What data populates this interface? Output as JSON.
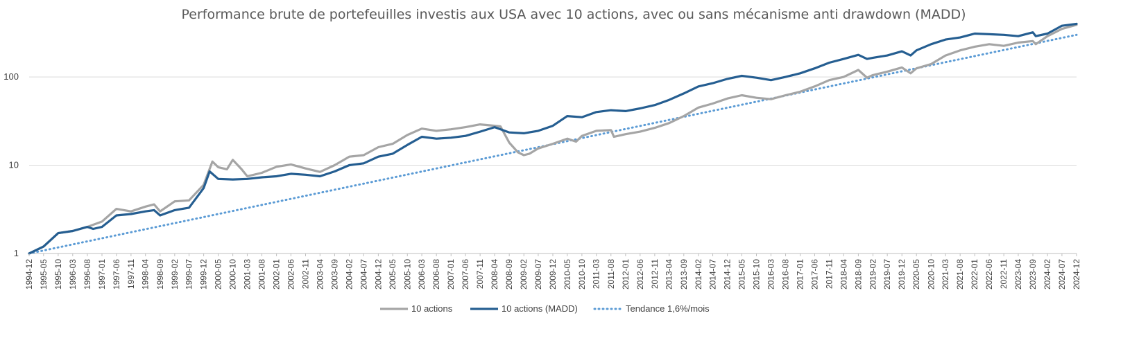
{
  "chart_data": {
    "type": "line",
    "title": "Performance brute de portefeuilles investis aux USA avec 10 actions, avec ou sans mécanisme anti drawdown (MADD)",
    "xlabel": "",
    "ylabel": "",
    "y_scale": "log",
    "ylim": [
      1,
      500
    ],
    "y_ticks": [
      "1",
      "10",
      "100"
    ],
    "y_tick_values": [
      1,
      10,
      100
    ],
    "grid": true,
    "legend_position": "bottom",
    "x_ticks": [
      "1994-12",
      "1995-05",
      "1995-10",
      "1996-03",
      "1996-08",
      "1997-01",
      "1997-06",
      "1997-11",
      "1998-04",
      "1998-09",
      "1999-02",
      "1999-07",
      "1999-12",
      "2000-05",
      "2000-10",
      "2001-03",
      "2001-08",
      "2002-01",
      "2002-06",
      "2002-11",
      "2003-04",
      "2003-09",
      "2004-02",
      "2004-07",
      "2004-12",
      "2005-05",
      "2005-10",
      "2006-03",
      "2006-08",
      "2007-01",
      "2007-06",
      "2007-11",
      "2008-04",
      "2008-09",
      "2009-02",
      "2009-07",
      "2009-12",
      "2010-05",
      "2010-10",
      "2011-03",
      "2011-08",
      "2012-01",
      "2012-06",
      "2012-11",
      "2013-04",
      "2013-09",
      "2014-02",
      "2014-07",
      "2014-12",
      "2015-05",
      "2015-10",
      "2016-03",
      "2016-08",
      "2017-01",
      "2017-06",
      "2017-11",
      "2018-04",
      "2018-09",
      "2019-02",
      "2019-07",
      "2019-12",
      "2020-05",
      "2020-10",
      "2021-03",
      "2021-08",
      "2022-01",
      "2022-06",
      "2022-11",
      "2023-04",
      "2023-09",
      "2024-02",
      "2024-07",
      "2024-12"
    ],
    "series": [
      {
        "name": "10 actions",
        "color": "#a5a5a5",
        "style": "solid",
        "points": [
          [
            "1994-12",
            1
          ],
          [
            "1995-05",
            1.2
          ],
          [
            "1995-10",
            1.7
          ],
          [
            "1996-03",
            1.8
          ],
          [
            "1996-08",
            2.0
          ],
          [
            "1997-01",
            2.3
          ],
          [
            "1997-06",
            3.2
          ],
          [
            "1997-11",
            3.0
          ],
          [
            "1998-04",
            3.4
          ],
          [
            "1998-07",
            3.6
          ],
          [
            "1998-09",
            3.0
          ],
          [
            "1999-02",
            3.9
          ],
          [
            "1999-07",
            4.0
          ],
          [
            "1999-12",
            6.0
          ],
          [
            "2000-03",
            11.0
          ],
          [
            "2000-05",
            9.5
          ],
          [
            "2000-08",
            9.0
          ],
          [
            "2000-10",
            11.5
          ],
          [
            "2001-01",
            9.0
          ],
          [
            "2001-03",
            7.5
          ],
          [
            "2001-08",
            8.2
          ],
          [
            "2002-01",
            9.6
          ],
          [
            "2002-06",
            10.2
          ],
          [
            "2002-11",
            9.2
          ],
          [
            "2003-04",
            8.4
          ],
          [
            "2003-09",
            10.0
          ],
          [
            "2004-02",
            12.5
          ],
          [
            "2004-07",
            13.0
          ],
          [
            "2004-12",
            16.0
          ],
          [
            "2005-05",
            17.5
          ],
          [
            "2005-10",
            22.0
          ],
          [
            "2006-03",
            26.0
          ],
          [
            "2006-08",
            24.5
          ],
          [
            "2007-01",
            25.5
          ],
          [
            "2007-06",
            27.0
          ],
          [
            "2007-11",
            29.0
          ],
          [
            "2008-04",
            28.0
          ],
          [
            "2008-06",
            27.5
          ],
          [
            "2008-09",
            18.0
          ],
          [
            "2008-12",
            14.0
          ],
          [
            "2009-02",
            13.0
          ],
          [
            "2009-04",
            13.5
          ],
          [
            "2009-07",
            15.5
          ],
          [
            "2009-12",
            17.5
          ],
          [
            "2010-05",
            20.0
          ],
          [
            "2010-08",
            18.5
          ],
          [
            "2010-10",
            21.5
          ],
          [
            "2011-03",
            24.5
          ],
          [
            "2011-08",
            25.0
          ],
          [
            "2011-09",
            21.0
          ],
          [
            "2012-01",
            22.5
          ],
          [
            "2012-06",
            24.0
          ],
          [
            "2012-11",
            26.5
          ],
          [
            "2013-04",
            30.0
          ],
          [
            "2013-09",
            36.0
          ],
          [
            "2014-02",
            45.0
          ],
          [
            "2014-07",
            50.0
          ],
          [
            "2014-12",
            57.0
          ],
          [
            "2015-05",
            62.0
          ],
          [
            "2015-10",
            58.0
          ],
          [
            "2016-03",
            56.0
          ],
          [
            "2016-08",
            62.0
          ],
          [
            "2017-01",
            68.0
          ],
          [
            "2017-06",
            78.0
          ],
          [
            "2017-11",
            92.0
          ],
          [
            "2018-04",
            100.0
          ],
          [
            "2018-09",
            120.0
          ],
          [
            "2018-12",
            98.0
          ],
          [
            "2019-02",
            105.0
          ],
          [
            "2019-07",
            115.0
          ],
          [
            "2019-12",
            128.0
          ],
          [
            "2020-03",
            110.0
          ],
          [
            "2020-05",
            125.0
          ],
          [
            "2020-10",
            140.0
          ],
          [
            "2021-03",
            175.0
          ],
          [
            "2021-08",
            200.0
          ],
          [
            "2022-01",
            220.0
          ],
          [
            "2022-06",
            235.0
          ],
          [
            "2022-11",
            225.0
          ],
          [
            "2023-04",
            245.0
          ],
          [
            "2023-09",
            255.0
          ],
          [
            "2023-10",
            235.0
          ],
          [
            "2024-02",
            290.0
          ],
          [
            "2024-07",
            350.0
          ],
          [
            "2024-12",
            390.0
          ]
        ]
      },
      {
        "name": "10 actions (MADD)",
        "color": "#255e91",
        "style": "solid",
        "points": [
          [
            "1994-12",
            1
          ],
          [
            "1995-05",
            1.2
          ],
          [
            "1995-10",
            1.7
          ],
          [
            "1996-03",
            1.8
          ],
          [
            "1996-08",
            2.0
          ],
          [
            "1996-10",
            1.9
          ],
          [
            "1997-01",
            2.0
          ],
          [
            "1997-06",
            2.7
          ],
          [
            "1997-11",
            2.8
          ],
          [
            "1998-04",
            3.0
          ],
          [
            "1998-07",
            3.1
          ],
          [
            "1998-09",
            2.7
          ],
          [
            "1999-02",
            3.1
          ],
          [
            "1999-07",
            3.3
          ],
          [
            "1999-12",
            5.5
          ],
          [
            "2000-02",
            8.5
          ],
          [
            "2000-05",
            7.0
          ],
          [
            "2000-10",
            6.9
          ],
          [
            "2001-03",
            7.0
          ],
          [
            "2001-08",
            7.3
          ],
          [
            "2002-01",
            7.5
          ],
          [
            "2002-06",
            8.0
          ],
          [
            "2002-11",
            7.8
          ],
          [
            "2003-04",
            7.5
          ],
          [
            "2003-09",
            8.5
          ],
          [
            "2004-02",
            10.0
          ],
          [
            "2004-07",
            10.5
          ],
          [
            "2004-12",
            12.5
          ],
          [
            "2005-05",
            13.5
          ],
          [
            "2005-10",
            17.0
          ],
          [
            "2006-03",
            21.0
          ],
          [
            "2006-08",
            20.0
          ],
          [
            "2007-01",
            20.5
          ],
          [
            "2007-06",
            21.5
          ],
          [
            "2007-11",
            24.0
          ],
          [
            "2008-04",
            27.0
          ],
          [
            "2008-09",
            23.5
          ],
          [
            "2009-02",
            23.0
          ],
          [
            "2009-07",
            24.5
          ],
          [
            "2009-12",
            28.0
          ],
          [
            "2010-05",
            36.0
          ],
          [
            "2010-10",
            35.0
          ],
          [
            "2011-03",
            40.0
          ],
          [
            "2011-08",
            42.0
          ],
          [
            "2012-01",
            41.0
          ],
          [
            "2012-06",
            44.0
          ],
          [
            "2012-11",
            48.0
          ],
          [
            "2013-04",
            55.0
          ],
          [
            "2013-09",
            65.0
          ],
          [
            "2014-02",
            78.0
          ],
          [
            "2014-07",
            85.0
          ],
          [
            "2014-12",
            95.0
          ],
          [
            "2015-05",
            103.0
          ],
          [
            "2015-10",
            98.0
          ],
          [
            "2016-03",
            92.0
          ],
          [
            "2016-08",
            100.0
          ],
          [
            "2017-01",
            110.0
          ],
          [
            "2017-06",
            125.0
          ],
          [
            "2017-11",
            145.0
          ],
          [
            "2018-04",
            160.0
          ],
          [
            "2018-09",
            178.0
          ],
          [
            "2018-12",
            160.0
          ],
          [
            "2019-02",
            165.0
          ],
          [
            "2019-07",
            175.0
          ],
          [
            "2019-12",
            195.0
          ],
          [
            "2020-03",
            175.0
          ],
          [
            "2020-05",
            200.0
          ],
          [
            "2020-10",
            235.0
          ],
          [
            "2021-03",
            265.0
          ],
          [
            "2021-08",
            280.0
          ],
          [
            "2022-01",
            310.0
          ],
          [
            "2022-06",
            305.0
          ],
          [
            "2022-11",
            300.0
          ],
          [
            "2023-04",
            290.0
          ],
          [
            "2023-09",
            320.0
          ],
          [
            "2023-10",
            290.0
          ],
          [
            "2024-02",
            310.0
          ],
          [
            "2024-07",
            380.0
          ],
          [
            "2024-12",
            400.0
          ]
        ]
      },
      {
        "name": "Tendance 1,6%/mois",
        "color": "#5b9bd5",
        "style": "dotted",
        "points": [
          [
            "1994-12",
            1
          ],
          [
            "2024-12",
            300.0
          ]
        ]
      }
    ]
  }
}
